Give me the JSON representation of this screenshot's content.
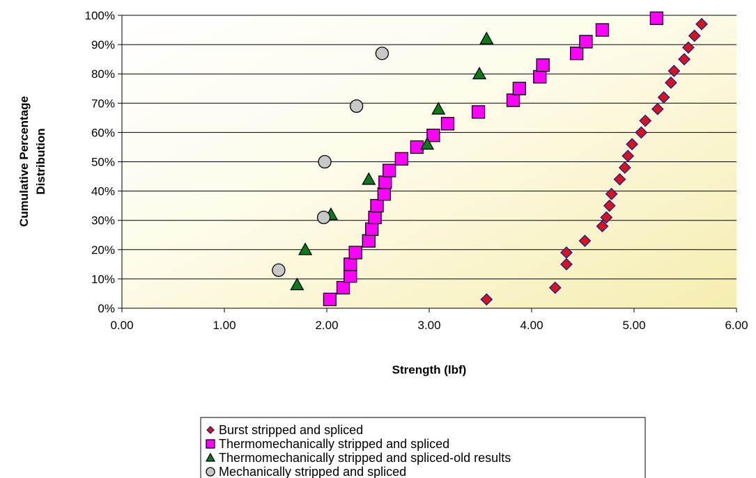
{
  "chart_data": {
    "type": "scatter",
    "title": "",
    "xlabel": "Strength (lbf)",
    "ylabel_lines": [
      "Cumulative Percentage",
      "Distribution"
    ],
    "xlim": [
      0,
      6
    ],
    "ylim": [
      0,
      100
    ],
    "x_ticks": [
      "0.00",
      "1.00",
      "2.00",
      "3.00",
      "4.00",
      "5.00",
      "6.00"
    ],
    "y_ticks": [
      "0%",
      "10%",
      "20%",
      "30%",
      "40%",
      "50%",
      "60%",
      "70%",
      "80%",
      "90%",
      "100%"
    ],
    "grid": "horizontal",
    "legend_position": "bottom",
    "background": "yellow-gradient",
    "series": [
      {
        "name": "Burst stripped and spliced",
        "marker": "diamond",
        "color": "#d4141e",
        "edge_color": "#1a1a8c",
        "points": [
          [
            3.56,
            3
          ],
          [
            4.23,
            7
          ],
          [
            4.34,
            15
          ],
          [
            4.34,
            19
          ],
          [
            4.52,
            23
          ],
          [
            4.69,
            28
          ],
          [
            4.73,
            31
          ],
          [
            4.76,
            35
          ],
          [
            4.78,
            39
          ],
          [
            4.86,
            44
          ],
          [
            4.91,
            48
          ],
          [
            4.94,
            52
          ],
          [
            4.98,
            56
          ],
          [
            5.07,
            60
          ],
          [
            5.11,
            64
          ],
          [
            5.23,
            68
          ],
          [
            5.29,
            72
          ],
          [
            5.36,
            77
          ],
          [
            5.39,
            81
          ],
          [
            5.49,
            85
          ],
          [
            5.53,
            89
          ],
          [
            5.59,
            93
          ],
          [
            5.66,
            97
          ]
        ]
      },
      {
        "name": "Thermomechanically stripped and spliced",
        "marker": "square",
        "color": "#ff00ff",
        "edge_color": "#000000",
        "points": [
          [
            2.03,
            3
          ],
          [
            2.16,
            7
          ],
          [
            2.23,
            11
          ],
          [
            2.23,
            15
          ],
          [
            2.28,
            19
          ],
          [
            2.41,
            23
          ],
          [
            2.44,
            27
          ],
          [
            2.47,
            31
          ],
          [
            2.49,
            35
          ],
          [
            2.56,
            39
          ],
          [
            2.57,
            43
          ],
          [
            2.61,
            47
          ],
          [
            2.73,
            51
          ],
          [
            2.88,
            55
          ],
          [
            3.04,
            59
          ],
          [
            3.18,
            63
          ],
          [
            3.48,
            67
          ],
          [
            3.82,
            71
          ],
          [
            3.88,
            75
          ],
          [
            4.08,
            79
          ],
          [
            4.11,
            83
          ],
          [
            4.44,
            87
          ],
          [
            4.53,
            91
          ],
          [
            4.69,
            95
          ],
          [
            5.22,
            99
          ]
        ]
      },
      {
        "name": "Thermomechanically stripped and spliced-old results",
        "marker": "triangle",
        "color": "#0a7a1a",
        "edge_color": "#000000",
        "points": [
          [
            1.71,
            8
          ],
          [
            1.79,
            20
          ],
          [
            2.04,
            32
          ],
          [
            2.41,
            44
          ],
          [
            2.98,
            56
          ],
          [
            3.09,
            68
          ],
          [
            3.49,
            80
          ],
          [
            3.56,
            92
          ]
        ]
      },
      {
        "name": "Mechanically stripped and spliced",
        "marker": "circle",
        "color": "#c8c8c8",
        "edge_color": "#000000",
        "points": [
          [
            1.53,
            13
          ],
          [
            1.97,
            31
          ],
          [
            1.98,
            50
          ],
          [
            2.29,
            69
          ],
          [
            2.54,
            87
          ]
        ]
      }
    ]
  }
}
